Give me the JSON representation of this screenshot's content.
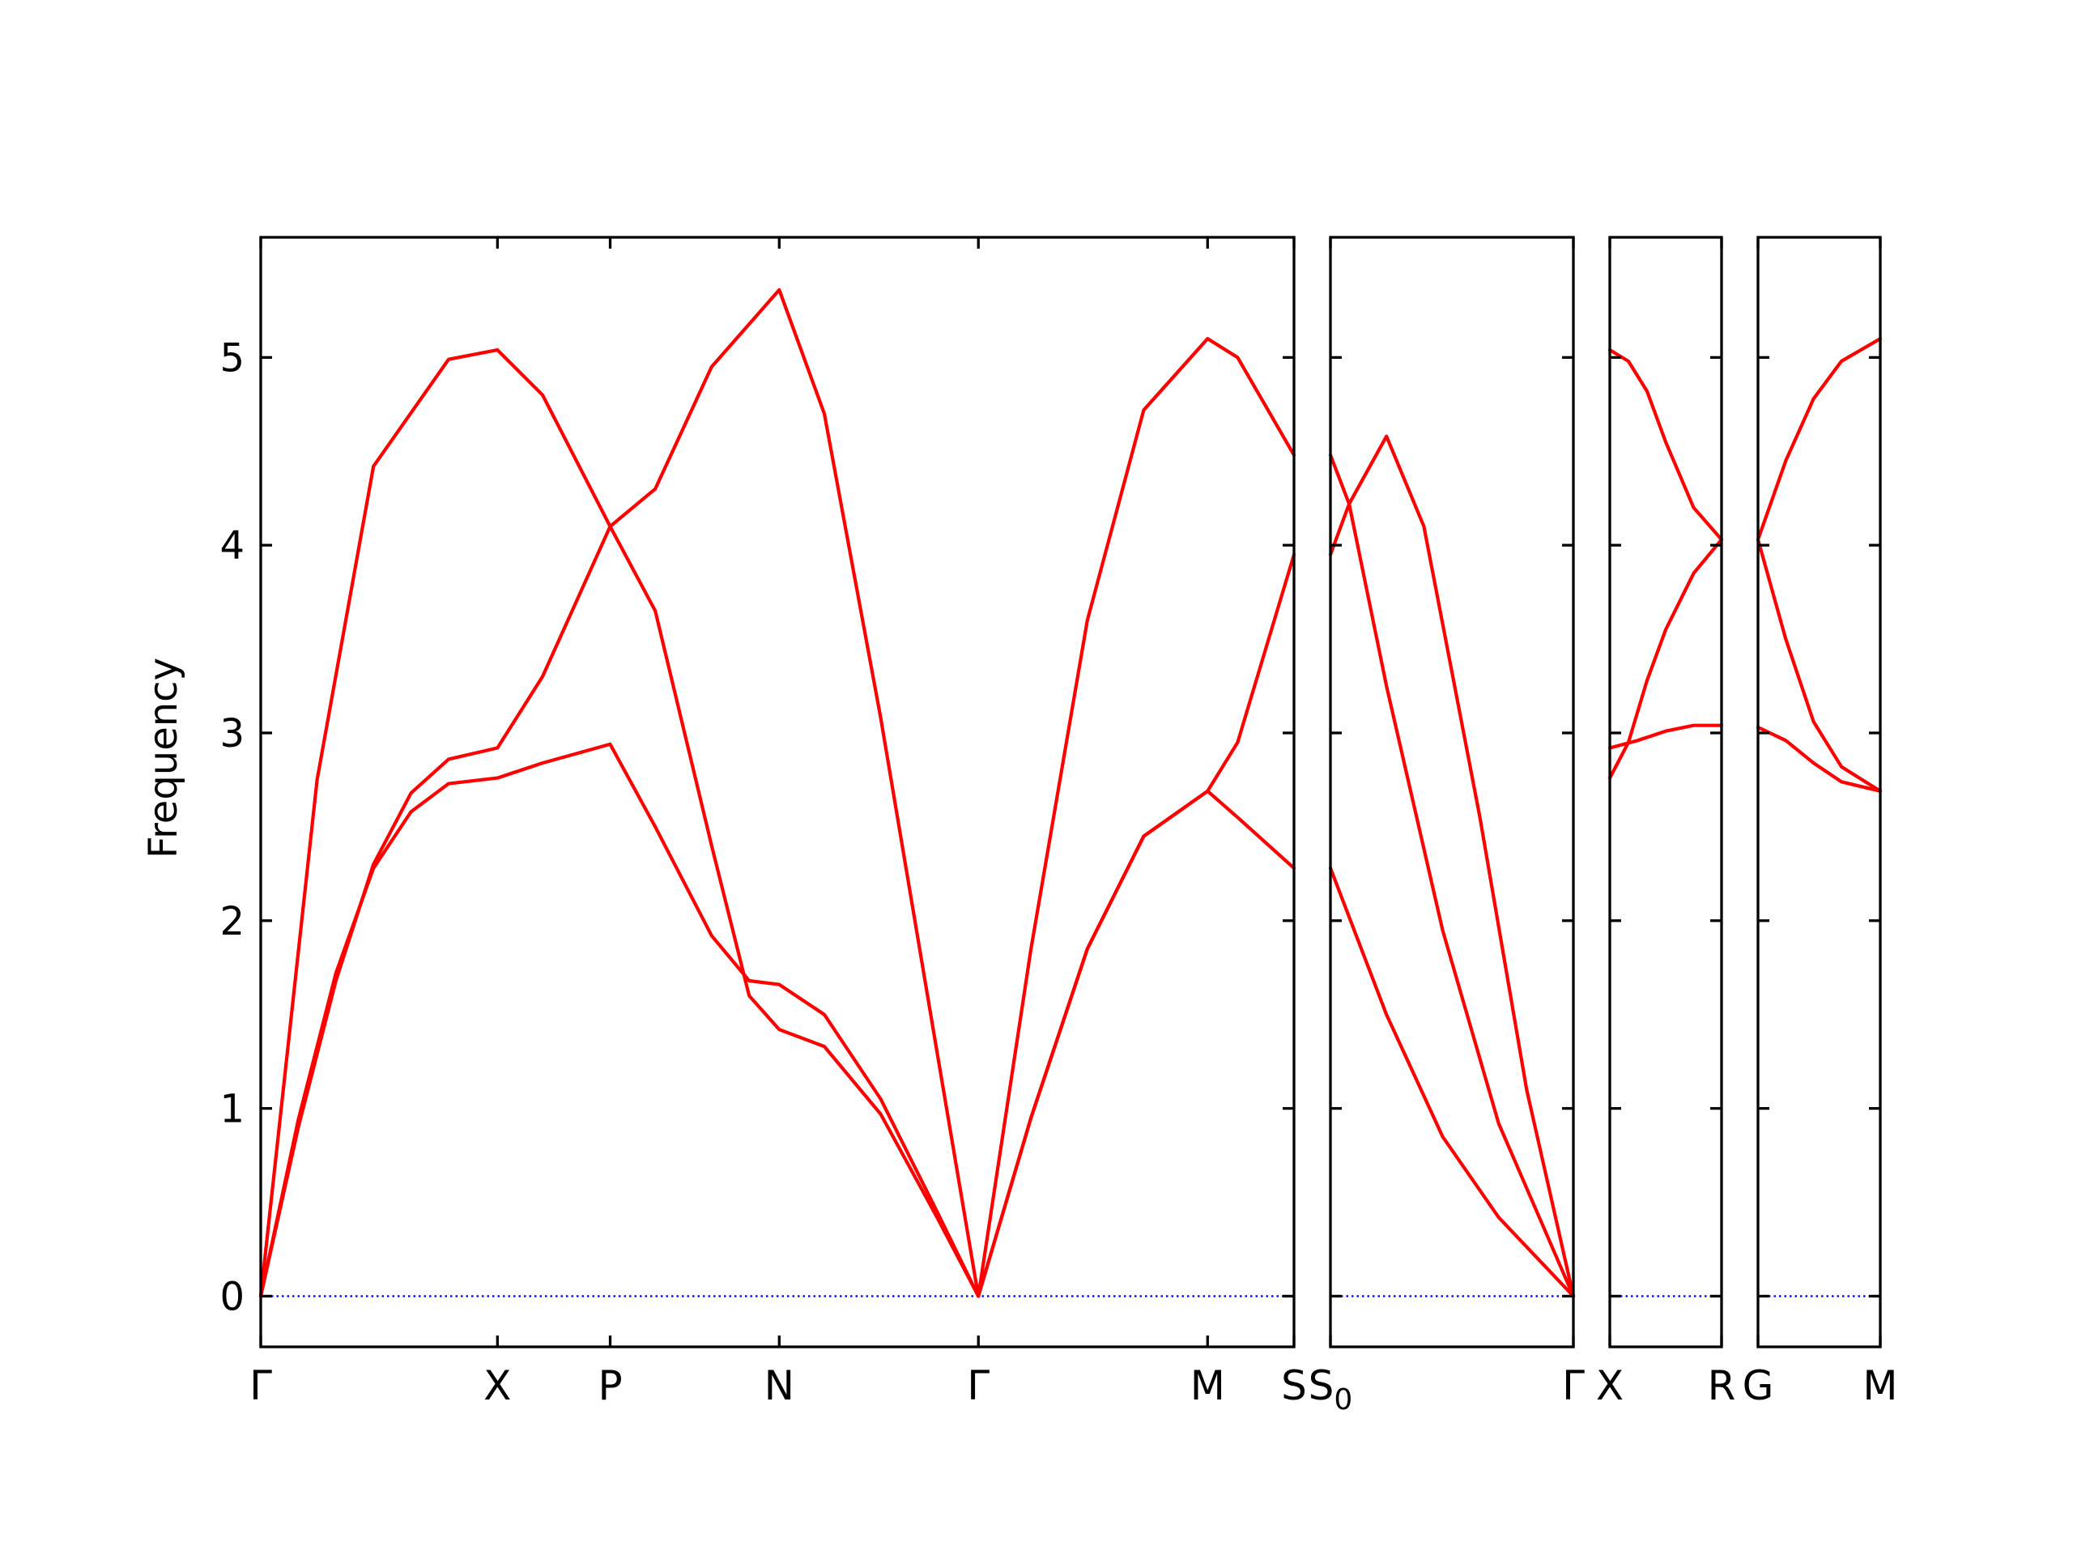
{
  "chart_data": {
    "type": "line",
    "ylabel": "Frequency",
    "ylim": [
      -0.27,
      5.64
    ],
    "yticks": [
      0,
      1,
      2,
      3,
      4,
      5
    ],
    "band_color": "#ff0000",
    "zero_line_color": "#0000ff",
    "grid": false,
    "panels": [
      {
        "x_range": [
          0,
          5.5
        ],
        "tick_positions": [
          0,
          1.26,
          1.86,
          2.76,
          3.82,
          5.04,
          5.5
        ],
        "tick_labels": [
          "Γ",
          "X",
          "P",
          "N",
          "Γ",
          "M",
          "S"
        ],
        "series": [
          {
            "points": [
              [
                0,
                0
              ],
              [
                0.2,
                0.94
              ],
              [
                0.4,
                1.72
              ],
              [
                0.6,
                2.28
              ],
              [
                0.8,
                2.58
              ],
              [
                1.0,
                2.73
              ],
              [
                1.26,
                2.76
              ],
              [
                1.5,
                2.84
              ],
              [
                1.86,
                2.94
              ],
              [
                2.1,
                2.5
              ],
              [
                2.4,
                1.92
              ],
              [
                2.6,
                1.68
              ],
              [
                2.76,
                1.66
              ],
              [
                3.0,
                1.5
              ],
              [
                3.3,
                1.05
              ],
              [
                3.6,
                0.45
              ],
              [
                3.82,
                0
              ]
            ]
          },
          {
            "points": [
              [
                0,
                0
              ],
              [
                0.2,
                0.9
              ],
              [
                0.4,
                1.68
              ],
              [
                0.6,
                2.3
              ],
              [
                0.8,
                2.68
              ],
              [
                1.0,
                2.86
              ],
              [
                1.26,
                2.92
              ],
              [
                1.5,
                3.3
              ],
              [
                1.86,
                4.1
              ],
              [
                2.1,
                3.65
              ],
              [
                2.4,
                2.4
              ],
              [
                2.6,
                1.6
              ],
              [
                2.76,
                1.42
              ],
              [
                3.0,
                1.33
              ],
              [
                3.3,
                0.97
              ],
              [
                3.6,
                0.42
              ],
              [
                3.82,
                0
              ]
            ]
          },
          {
            "points": [
              [
                0,
                0
              ],
              [
                0.3,
                2.75
              ],
              [
                0.6,
                4.42
              ],
              [
                1.0,
                4.99
              ],
              [
                1.26,
                5.04
              ],
              [
                1.5,
                4.8
              ],
              [
                1.86,
                4.1
              ],
              [
                2.1,
                4.3
              ],
              [
                2.4,
                4.95
              ],
              [
                2.76,
                5.36
              ],
              [
                3.0,
                4.7
              ],
              [
                3.3,
                3.08
              ],
              [
                3.6,
                1.3
              ],
              [
                3.82,
                0
              ]
            ]
          },
          {
            "points": [
              [
                3.82,
                0
              ],
              [
                4.1,
                0.95
              ],
              [
                4.4,
                1.85
              ],
              [
                4.7,
                2.45
              ],
              [
                5.04,
                2.69
              ],
              [
                5.2,
                2.55
              ],
              [
                5.5,
                2.28
              ]
            ]
          },
          {
            "points": [
              [
                3.82,
                0
              ],
              [
                4.1,
                1.85
              ],
              [
                4.4,
                3.6
              ],
              [
                4.7,
                4.72
              ],
              [
                5.04,
                5.1
              ],
              [
                5.2,
                5.0
              ],
              [
                5.5,
                4.48
              ]
            ]
          },
          {
            "points": [
              [
                3.82,
                0
              ],
              [
                4.1,
                0.95
              ],
              [
                4.4,
                1.85
              ],
              [
                4.7,
                2.45
              ],
              [
                5.04,
                2.69
              ],
              [
                5.2,
                2.95
              ],
              [
                5.5,
                3.95
              ]
            ]
          }
        ]
      },
      {
        "x_range": [
          0,
          1.3
        ],
        "tick_positions": [
          0,
          1.3
        ],
        "tick_labels": [
          "S0",
          "Γ"
        ],
        "series": [
          {
            "points": [
              [
                0,
                2.28
              ],
              [
                0.3,
                1.5
              ],
              [
                0.6,
                0.85
              ],
              [
                0.9,
                0.42
              ],
              [
                1.3,
                0
              ]
            ]
          },
          {
            "points": [
              [
                0,
                4.48
              ],
              [
                0.1,
                4.22
              ],
              [
                0.3,
                3.25
              ],
              [
                0.6,
                1.95
              ],
              [
                0.9,
                0.92
              ],
              [
                1.3,
                0
              ]
            ]
          },
          {
            "points": [
              [
                0,
                3.95
              ],
              [
                0.1,
                4.22
              ],
              [
                0.3,
                4.58
              ],
              [
                0.5,
                4.1
              ],
              [
                0.8,
                2.55
              ],
              [
                1.05,
                1.1
              ],
              [
                1.3,
                0
              ]
            ]
          }
        ]
      },
      {
        "x_range": [
          0,
          0.6
        ],
        "tick_positions": [
          0,
          0.6
        ],
        "tick_labels": [
          "X",
          "R"
        ],
        "series": [
          {
            "points": [
              [
                0,
                2.76
              ],
              [
                0.1,
                2.95
              ],
              [
                0.2,
                3.28
              ],
              [
                0.3,
                3.55
              ],
              [
                0.45,
                3.85
              ],
              [
                0.6,
                4.03
              ]
            ]
          },
          {
            "points": [
              [
                0,
                2.92
              ],
              [
                0.15,
                2.96
              ],
              [
                0.3,
                3.01
              ],
              [
                0.45,
                3.04
              ],
              [
                0.6,
                3.04
              ]
            ]
          },
          {
            "points": [
              [
                0,
                5.04
              ],
              [
                0.1,
                4.98
              ],
              [
                0.2,
                4.82
              ],
              [
                0.3,
                4.55
              ],
              [
                0.45,
                4.2
              ],
              [
                0.6,
                4.03
              ]
            ]
          }
        ]
      },
      {
        "x_range": [
          0,
          0.66
        ],
        "tick_positions": [
          0,
          0.66
        ],
        "tick_labels": [
          "G",
          "M"
        ],
        "series": [
          {
            "points": [
              [
                0,
                3.03
              ],
              [
                0.15,
                2.96
              ],
              [
                0.3,
                2.84
              ],
              [
                0.45,
                2.74
              ],
              [
                0.66,
                2.69
              ]
            ]
          },
          {
            "points": [
              [
                0,
                4.03
              ],
              [
                0.15,
                3.5
              ],
              [
                0.3,
                3.06
              ],
              [
                0.45,
                2.82
              ],
              [
                0.66,
                2.69
              ]
            ]
          },
          {
            "points": [
              [
                0,
                4.03
              ],
              [
                0.15,
                4.45
              ],
              [
                0.3,
                4.78
              ],
              [
                0.45,
                4.98
              ],
              [
                0.66,
                5.1
              ]
            ]
          }
        ]
      }
    ]
  }
}
